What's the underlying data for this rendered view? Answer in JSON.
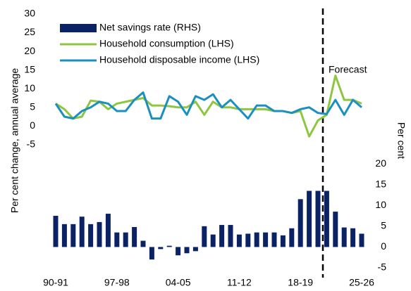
{
  "chart_data": {
    "type": "bar-line",
    "categories": [
      "90-91",
      null,
      null,
      null,
      null,
      null,
      null,
      "97-98",
      null,
      null,
      null,
      null,
      null,
      null,
      "04-05",
      null,
      null,
      null,
      null,
      null,
      null,
      "11-12",
      null,
      null,
      null,
      null,
      null,
      null,
      "18-19",
      null,
      null,
      null,
      null,
      null,
      null,
      "25-26"
    ],
    "series": [
      {
        "name": "Net savings rate (RHS)",
        "color": "#0b2265",
        "kind": "bar",
        "axis": "y2",
        "values": [
          7.5,
          5.5,
          5.5,
          7.3,
          5.5,
          6,
          8,
          3.5,
          3.5,
          4.8,
          1.5,
          -3,
          -0.5,
          0.3,
          -2,
          -1.5,
          -1,
          5,
          3,
          5.3,
          5.3,
          3,
          3.2,
          3.5,
          3.5,
          3.5,
          2.8,
          4.5,
          11.5,
          13.5,
          13.5,
          13.5,
          8.5,
          4.7,
          4.5,
          3.2
        ]
      },
      {
        "name": "Household consumption (LHS)",
        "color": "#8dc63f",
        "kind": "line",
        "values": [
          6,
          4.5,
          2,
          2.5,
          6.8,
          6.5,
          4.5,
          6,
          6.5,
          7,
          7.5,
          5.5,
          5.5,
          5.3,
          5,
          5,
          6.5,
          3,
          6.5,
          5,
          5,
          4.5,
          4.5,
          4.5,
          4.5,
          4,
          4,
          3.5,
          4,
          -2.8,
          1.5,
          3,
          13.5,
          7,
          7,
          6
        ]
      },
      {
        "name": "Household disposable income (LHS)",
        "color": "#1b8fc0",
        "kind": "line",
        "values": [
          6,
          2.5,
          2,
          4,
          5,
          6.5,
          6,
          4,
          4,
          7,
          9,
          2,
          2,
          8,
          6.5,
          3,
          8,
          7,
          8.5,
          5,
          7,
          4.5,
          2,
          5.5,
          5.5,
          4,
          4,
          3.5,
          4.5,
          5,
          3.5,
          3.2,
          7,
          3,
          7,
          5
        ]
      }
    ],
    "ylabel": "Per cent change, annual average",
    "y2label": "Per cent",
    "annotation": "Forecast",
    "ylim": [
      -38,
      30
    ],
    "yticks": [
      -5,
      0,
      5,
      10,
      15,
      20,
      25,
      30
    ],
    "y2lim": [
      -5,
      56
    ],
    "y2ticks": [
      -5,
      0,
      5,
      10,
      15,
      20
    ]
  }
}
